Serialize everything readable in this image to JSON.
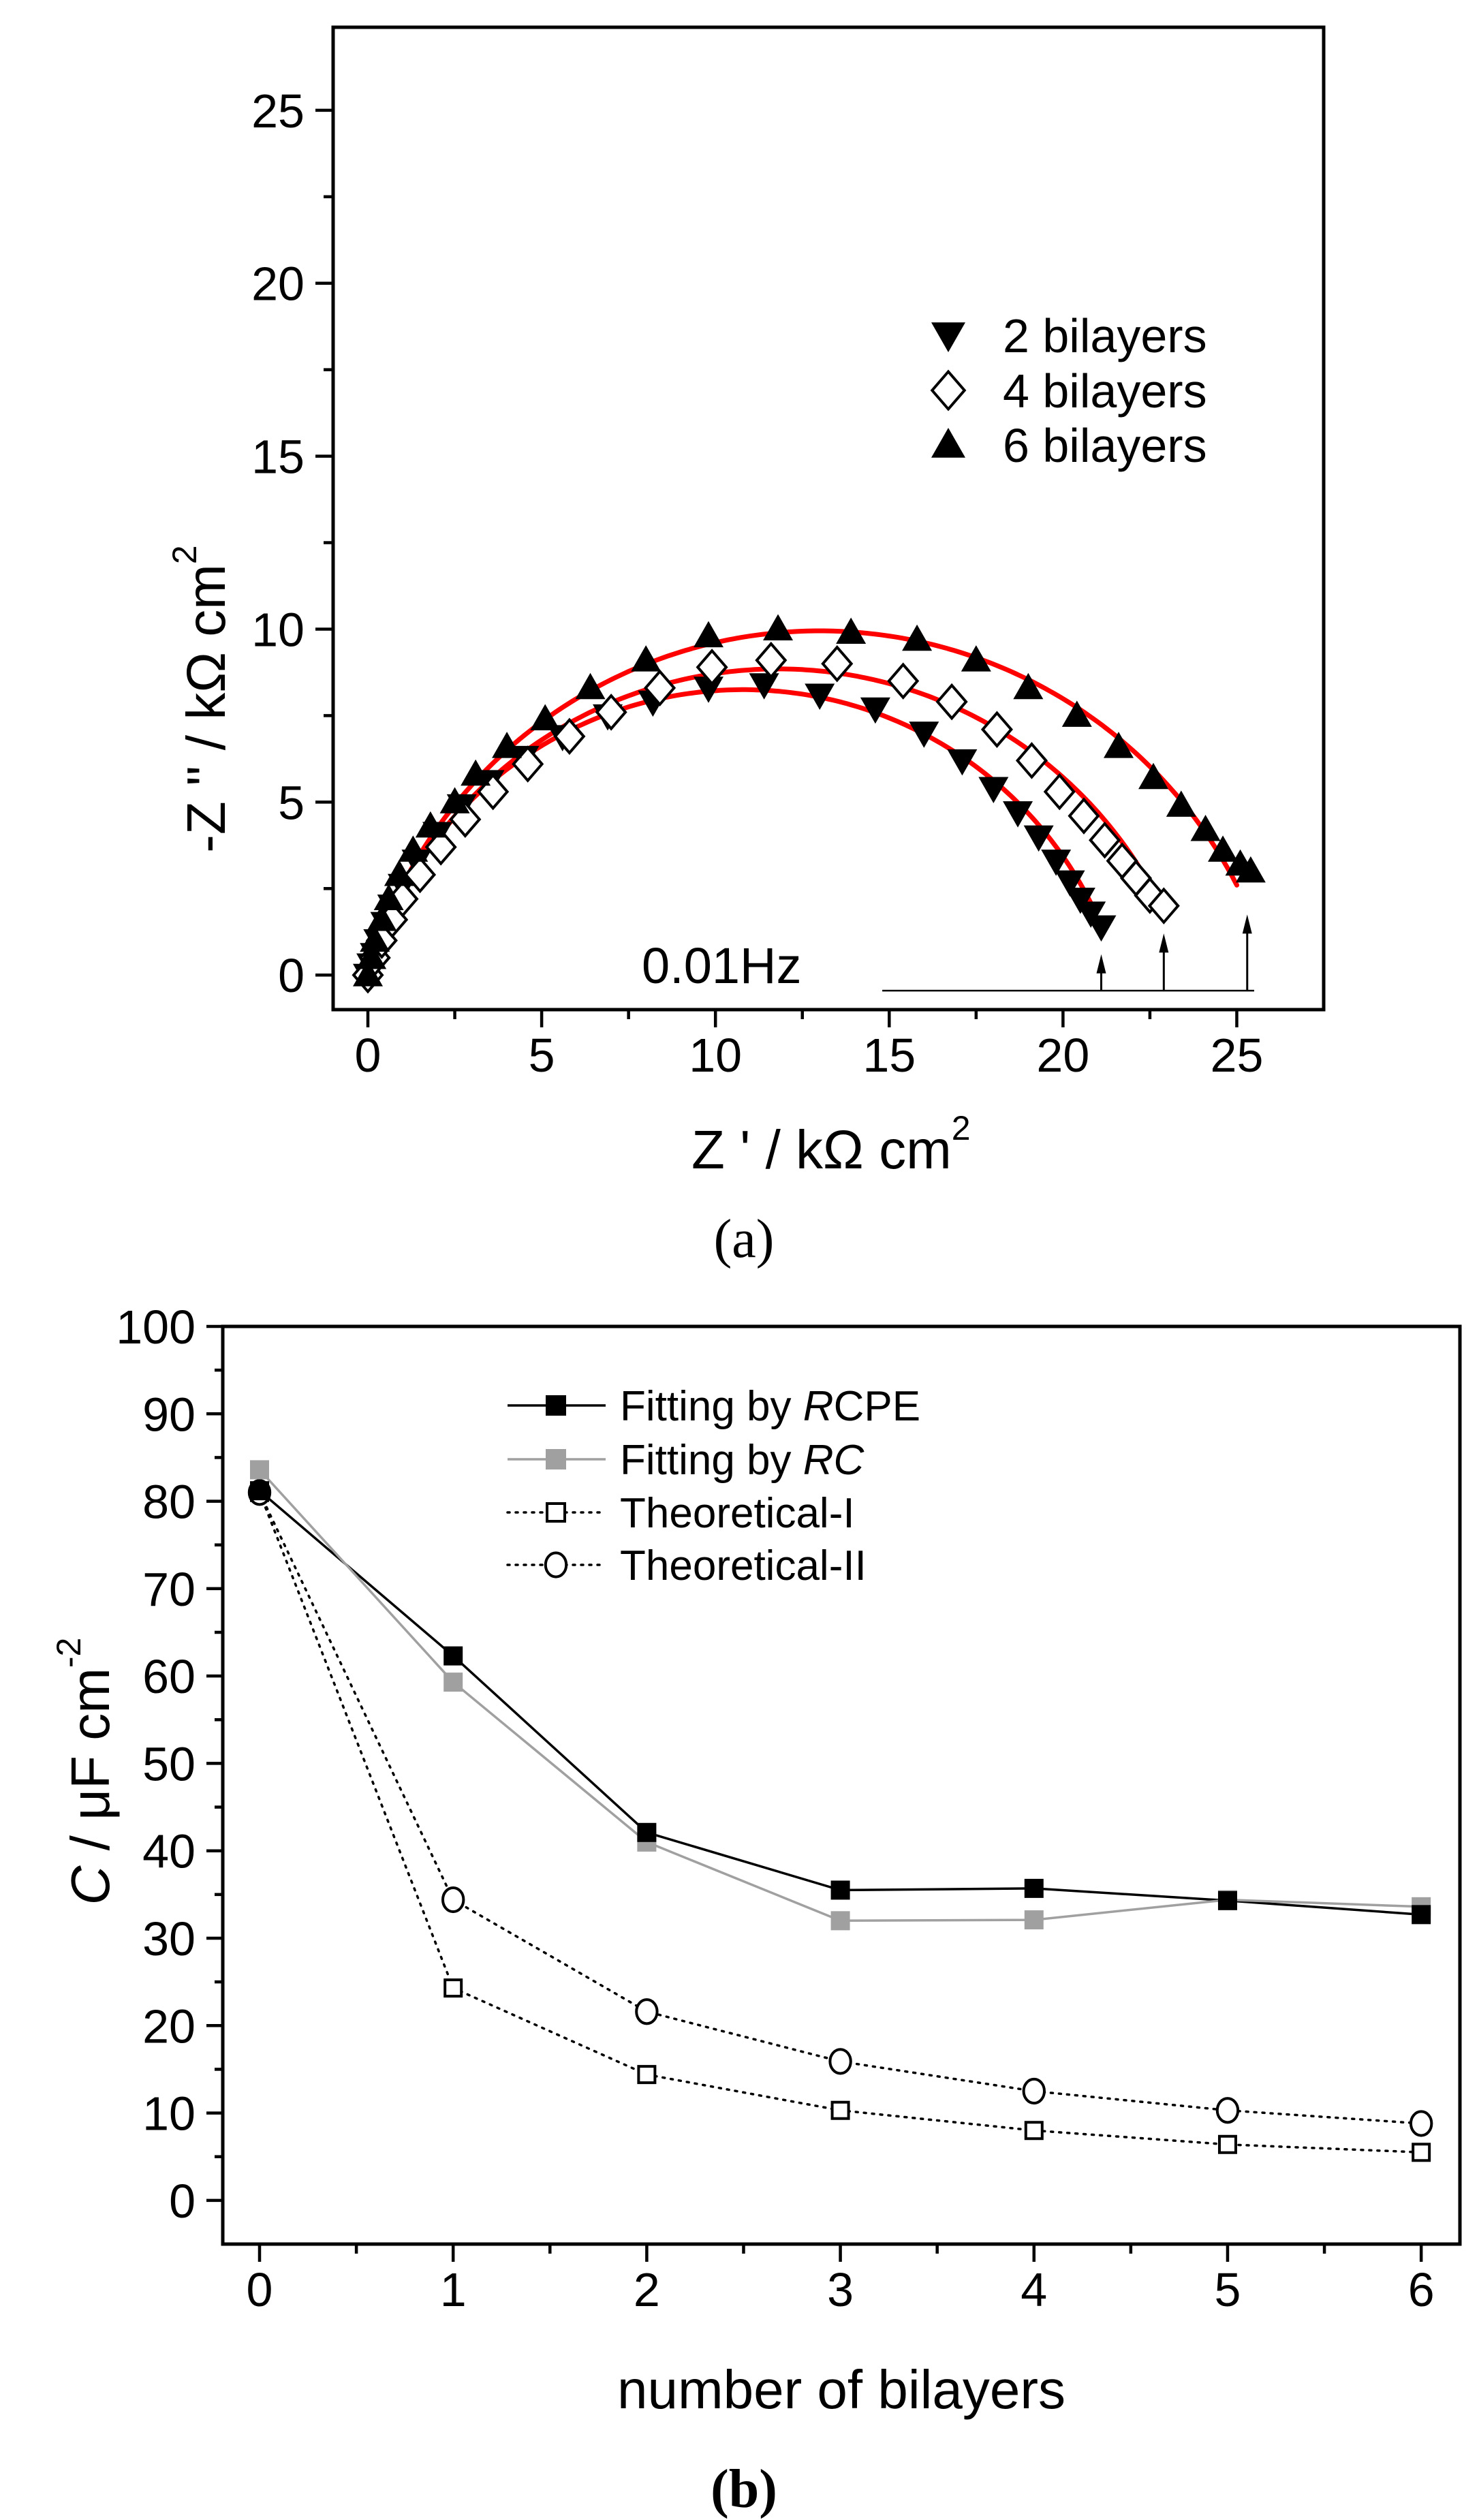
{
  "chart_data": [
    {
      "panel": "(a)",
      "type": "scatter",
      "title": "",
      "xlabel": "Z ' / kΩ cm",
      "xlabel_sup": "2",
      "ylabel": "-Z '' / kΩ cm",
      "ylabel_sup": "2",
      "xlim": [
        -1.0,
        27.5
      ],
      "ylim": [
        -1.0,
        27.4
      ],
      "xticks": [
        0,
        5,
        10,
        15,
        20,
        25
      ],
      "xtick_labels": [
        "0",
        "5",
        "10",
        "15",
        "20",
        "25"
      ],
      "xminor_step": 2.5,
      "yticks": [
        0,
        5,
        10,
        15,
        20,
        25
      ],
      "ytick_labels": [
        "0",
        "5",
        "10",
        "15",
        "20",
        "25"
      ],
      "yminor_step": 2.5,
      "grid": false,
      "legend_position": "upper-right",
      "annotation": {
        "text": "0.01Hz",
        "baseline_y": -0.45,
        "baseline_x_range": [
          14.8,
          25.5
        ],
        "arrows": [
          {
            "x": 21.1,
            "tip_y": 0.6
          },
          {
            "x": 22.9,
            "tip_y": 1.2
          },
          {
            "x": 25.3,
            "tip_y": 1.75
          }
        ]
      },
      "series": [
        {
          "name": "2 bilayers",
          "marker": "triangle-down",
          "fill": "#000000",
          "points": [
            [
              0,
              0
            ],
            [
              0.1,
              0.3
            ],
            [
              0.2,
              0.6
            ],
            [
              0.3,
              1.0
            ],
            [
              0.5,
              1.5
            ],
            [
              0.7,
              2.0
            ],
            [
              1.0,
              2.6
            ],
            [
              1.4,
              3.3
            ],
            [
              2.0,
              4.1
            ],
            [
              2.7,
              4.9
            ],
            [
              3.5,
              5.6
            ],
            [
              4.5,
              6.3
            ],
            [
              5.6,
              6.9
            ],
            [
              6.9,
              7.5
            ],
            [
              8.2,
              7.9
            ],
            [
              9.8,
              8.3
            ],
            [
              11.4,
              8.4
            ],
            [
              13.0,
              8.1
            ],
            [
              14.6,
              7.7
            ],
            [
              16.0,
              7.0
            ],
            [
              17.1,
              6.2
            ],
            [
              18.0,
              5.4
            ],
            [
              18.7,
              4.7
            ],
            [
              19.3,
              4.0
            ],
            [
              19.8,
              3.3
            ],
            [
              20.2,
              2.7
            ],
            [
              20.5,
              2.2
            ],
            [
              20.8,
              1.8
            ],
            [
              21.1,
              1.4
            ]
          ],
          "fit": {
            "center": [
              10.8,
              -2.94
            ],
            "radius": 11.19,
            "x_end": 20.9,
            "color": "#ff0000"
          }
        },
        {
          "name": "4 bilayers",
          "marker": "diamond-open",
          "fill": "#ffffff",
          "points": [
            [
              0,
              0
            ],
            [
              0.2,
              0.5
            ],
            [
              0.4,
              1.0
            ],
            [
              0.7,
              1.6
            ],
            [
              1.0,
              2.2
            ],
            [
              1.5,
              2.9
            ],
            [
              2.1,
              3.7
            ],
            [
              2.8,
              4.5
            ],
            [
              3.6,
              5.3
            ],
            [
              4.6,
              6.1
            ],
            [
              5.8,
              6.9
            ],
            [
              7.0,
              7.6
            ],
            [
              8.4,
              8.3
            ],
            [
              9.9,
              8.9
            ],
            [
              11.6,
              9.1
            ],
            [
              13.5,
              9.0
            ],
            [
              15.4,
              8.5
            ],
            [
              16.8,
              7.9
            ],
            [
              18.1,
              7.1
            ],
            [
              19.1,
              6.2
            ],
            [
              19.9,
              5.3
            ],
            [
              20.6,
              4.6
            ],
            [
              21.2,
              3.9
            ],
            [
              21.7,
              3.3
            ],
            [
              22.1,
              2.8
            ],
            [
              22.5,
              2.3
            ],
            [
              22.9,
              2.0
            ]
          ],
          "fit": {
            "center": [
              11.8,
              -3.44
            ],
            "radius": 12.29,
            "x_end": 22.7,
            "color": "#ff0000"
          }
        },
        {
          "name": "6 bilayers",
          "marker": "triangle-up",
          "fill": "#000000",
          "points": [
            [
              0,
              0
            ],
            [
              0.1,
              0.5
            ],
            [
              0.2,
              1.0
            ],
            [
              0.4,
              1.6
            ],
            [
              0.6,
              2.2
            ],
            [
              0.9,
              2.9
            ],
            [
              1.3,
              3.6
            ],
            [
              1.8,
              4.3
            ],
            [
              2.5,
              5.0
            ],
            [
              3.1,
              5.8
            ],
            [
              4.0,
              6.6
            ],
            [
              5.1,
              7.4
            ],
            [
              6.4,
              8.3
            ],
            [
              8.0,
              9.1
            ],
            [
              9.8,
              9.8
            ],
            [
              11.8,
              10.0
            ],
            [
              13.9,
              9.9
            ],
            [
              15.8,
              9.7
            ],
            [
              17.5,
              9.1
            ],
            [
              19.0,
              8.3
            ],
            [
              20.4,
              7.5
            ],
            [
              21.6,
              6.6
            ],
            [
              22.6,
              5.7
            ],
            [
              23.4,
              4.9
            ],
            [
              24.1,
              4.2
            ],
            [
              24.6,
              3.6
            ],
            [
              25.1,
              3.2
            ],
            [
              25.4,
              3.0
            ]
          ],
          "fit": {
            "center": [
              13.0,
              -3.52
            ],
            "radius": 13.47,
            "x_end": 25.0,
            "color": "#ff0000"
          }
        }
      ]
    },
    {
      "panel": "(b)",
      "type": "line",
      "title": "",
      "xlabel": "number of bilayers",
      "ylabel_italic": "C",
      "ylabel_rest": " / μF cm",
      "ylabel_sup": "-2",
      "x": [
        0,
        1,
        2,
        3,
        4,
        5,
        6
      ],
      "xlim": [
        -0.19,
        6.2
      ],
      "ylim": [
        -5,
        100
      ],
      "xticks": [
        0,
        1,
        2,
        3,
        4,
        5,
        6
      ],
      "xtick_labels": [
        "0",
        "1",
        "2",
        "3",
        "4",
        "5",
        "6"
      ],
      "xminor_step": 0.5,
      "yticks": [
        0,
        10,
        20,
        30,
        40,
        50,
        60,
        70,
        80,
        90,
        100
      ],
      "ytick_labels": [
        "0",
        "10",
        "20",
        "30",
        "40",
        "50",
        "60",
        "70",
        "80",
        "90",
        "100"
      ],
      "yminor_step": 5,
      "grid": false,
      "legend_position": "upper-center",
      "series": [
        {
          "name_prefix": "Fitting by ",
          "name_italic": "R",
          "name_suffix": "CPE",
          "marker": "square-filled",
          "color": "#000000",
          "line": "solid",
          "values": [
            81.2,
            62.3,
            42.1,
            35.5,
            35.7,
            34.3,
            32.7
          ]
        },
        {
          "name_prefix": "Fitting by ",
          "name_italic": "RC",
          "name_suffix": "",
          "marker": "square-filled",
          "color": "#a0a0a0",
          "line": "solid",
          "values": [
            83.6,
            59.3,
            41.0,
            32.0,
            32.1,
            34.4,
            33.6
          ]
        },
        {
          "name_prefix": "Theoretical-I",
          "name_italic": "",
          "name_suffix": "",
          "marker": "square-open",
          "color": "#000000",
          "line": "dotted",
          "values": [
            81.0,
            24.3,
            14.4,
            10.3,
            8.0,
            6.4,
            5.5
          ]
        },
        {
          "name_prefix": "Theoretical-II",
          "name_italic": "",
          "name_suffix": "",
          "marker": "circle-open",
          "color": "#000000",
          "line": "dotted",
          "values": [
            81.0,
            34.4,
            21.6,
            15.9,
            12.5,
            10.3,
            8.8
          ]
        }
      ]
    }
  ],
  "captions": {
    "a": "(a)",
    "b": "(b)"
  }
}
